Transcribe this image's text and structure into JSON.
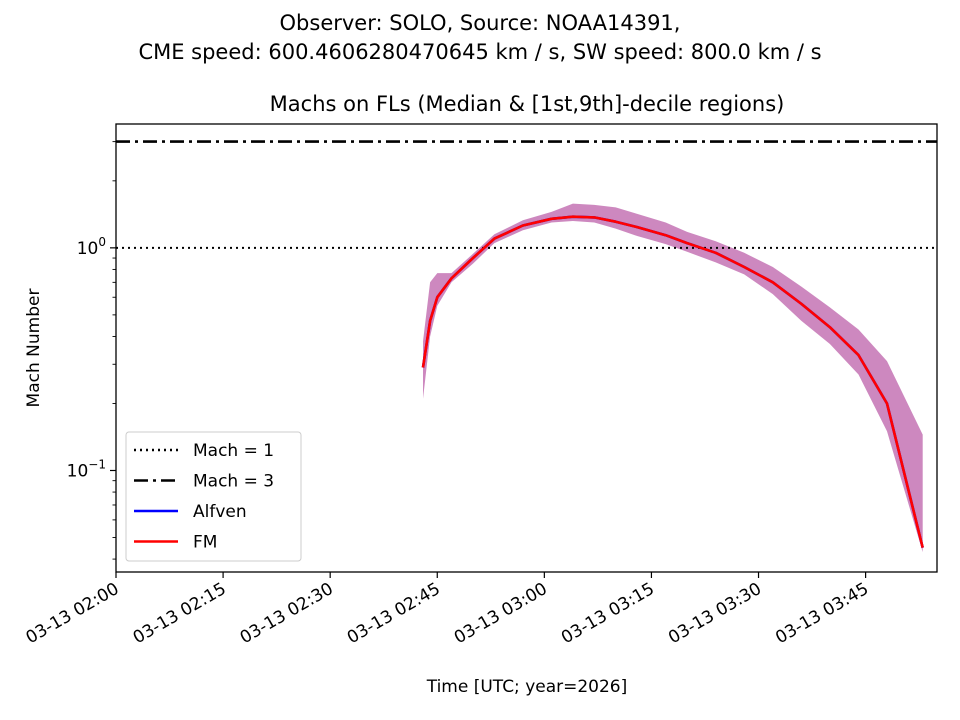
{
  "figure": {
    "suptitle_line1": "Observer: SOLO, Source: NOAA14391,",
    "suptitle_line2": "CME speed: 600.4606280470645 km / s, SW speed: 800.0 km / s"
  },
  "chart_data": {
    "type": "line",
    "title": "Machs on FLs (Median & [1st,9th]-decile regions)",
    "xlabel": "Time [UTC; year=2026]",
    "ylabel": "Mach Number",
    "yscale": "log",
    "xlim": [
      "2026-03-13 02:00",
      "2026-03-13 03:55"
    ],
    "ylim": [
      0.035,
      3.6
    ],
    "x_ticks": [
      "03-13 02:00",
      "03-13 02:15",
      "03-13 02:30",
      "03-13 02:45",
      "03-13 03:00",
      "03-13 03:15",
      "03-13 03:30",
      "03-13 03:45"
    ],
    "y_ticks": [
      {
        "value": 1,
        "label": "10^0"
      },
      {
        "value": 0.1,
        "label": "10^-1"
      }
    ],
    "reference_lines": [
      {
        "name": "Mach = 1",
        "value": 1,
        "style": "dotted",
        "color": "#000000"
      },
      {
        "name": "Mach = 3",
        "value": 3,
        "style": "dashdot",
        "color": "#000000"
      }
    ],
    "legend_location": "lower-left",
    "grid": false,
    "series": [
      {
        "name": "Alfven",
        "color": "#0000ff",
        "x": [
          "2026-03-13 02:43",
          "2026-03-13 02:44",
          "2026-03-13 02:45",
          "2026-03-13 02:47",
          "2026-03-13 02:50",
          "2026-03-13 02:53",
          "2026-03-13 02:57",
          "2026-03-13 03:01",
          "2026-03-13 03:04",
          "2026-03-13 03:07",
          "2026-03-13 03:10",
          "2026-03-13 03:13",
          "2026-03-13 03:17",
          "2026-03-13 03:20",
          "2026-03-13 03:24",
          "2026-03-13 03:28",
          "2026-03-13 03:32",
          "2026-03-13 03:36",
          "2026-03-13 03:40",
          "2026-03-13 03:44",
          "2026-03-13 03:48",
          "2026-03-13 03:53"
        ],
        "y": [
          0.29,
          0.47,
          0.6,
          0.73,
          0.9,
          1.1,
          1.26,
          1.35,
          1.38,
          1.37,
          1.31,
          1.24,
          1.14,
          1.05,
          0.95,
          0.82,
          0.7,
          0.56,
          0.44,
          0.33,
          0.2,
          0.045
        ]
      },
      {
        "name": "FM",
        "color": "#ff0000",
        "x": [
          "2026-03-13 02:43",
          "2026-03-13 02:44",
          "2026-03-13 02:45",
          "2026-03-13 02:47",
          "2026-03-13 02:50",
          "2026-03-13 02:53",
          "2026-03-13 02:57",
          "2026-03-13 03:01",
          "2026-03-13 03:04",
          "2026-03-13 03:07",
          "2026-03-13 03:10",
          "2026-03-13 03:13",
          "2026-03-13 03:17",
          "2026-03-13 03:20",
          "2026-03-13 03:24",
          "2026-03-13 03:28",
          "2026-03-13 03:32",
          "2026-03-13 03:36",
          "2026-03-13 03:40",
          "2026-03-13 03:44",
          "2026-03-13 03:48",
          "2026-03-13 03:53"
        ],
        "y": [
          0.29,
          0.47,
          0.6,
          0.73,
          0.9,
          1.1,
          1.26,
          1.35,
          1.38,
          1.37,
          1.31,
          1.24,
          1.14,
          1.05,
          0.95,
          0.82,
          0.7,
          0.56,
          0.44,
          0.33,
          0.2,
          0.045
        ]
      }
    ],
    "band": {
      "color": "#c87bb8",
      "x": [
        "2026-03-13 02:43",
        "2026-03-13 02:44",
        "2026-03-13 02:45",
        "2026-03-13 02:47",
        "2026-03-13 02:50",
        "2026-03-13 02:53",
        "2026-03-13 02:57",
        "2026-03-13 03:01",
        "2026-03-13 03:04",
        "2026-03-13 03:07",
        "2026-03-13 03:10",
        "2026-03-13 03:13",
        "2026-03-13 03:17",
        "2026-03-13 03:20",
        "2026-03-13 03:24",
        "2026-03-13 03:28",
        "2026-03-13 03:32",
        "2026-03-13 03:36",
        "2026-03-13 03:40",
        "2026-03-13 03:44",
        "2026-03-13 03:48",
        "2026-03-13 03:53"
      ],
      "low": [
        0.21,
        0.4,
        0.55,
        0.7,
        0.85,
        1.05,
        1.2,
        1.3,
        1.32,
        1.3,
        1.22,
        1.13,
        1.04,
        0.96,
        0.86,
        0.76,
        0.62,
        0.47,
        0.37,
        0.27,
        0.15,
        0.043
      ],
      "high": [
        0.38,
        0.7,
        0.77,
        0.77,
        0.94,
        1.15,
        1.33,
        1.45,
        1.58,
        1.56,
        1.52,
        1.42,
        1.3,
        1.18,
        1.07,
        0.95,
        0.82,
        0.67,
        0.54,
        0.43,
        0.31,
        0.145
      ]
    }
  }
}
